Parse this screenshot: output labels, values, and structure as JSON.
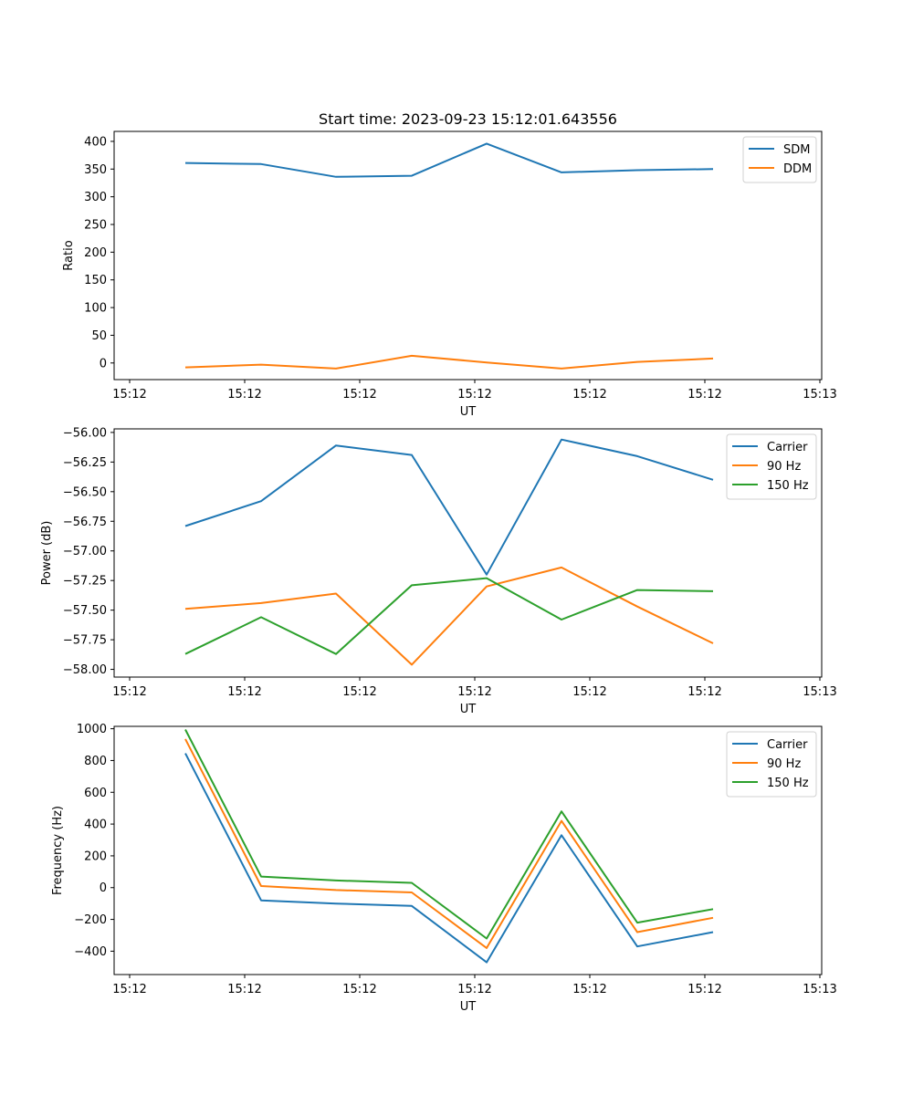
{
  "chart_data": [
    {
      "type": "line",
      "title": "Start time: 2023-09-23 15:12:01.643556",
      "xlabel": "UT",
      "ylabel": "Ratio",
      "x_tick_labels": [
        "15:12",
        "15:12",
        "15:12",
        "15:12",
        "15:12",
        "15:12",
        "15:13"
      ],
      "y_ticks": [
        0,
        50,
        100,
        150,
        200,
        250,
        300,
        350,
        400
      ],
      "ylim": [
        -30,
        418
      ],
      "legend_loc": "upper-right",
      "series": [
        {
          "name": "SDM",
          "color": "#1f77b4",
          "values": [
            361,
            359,
            336,
            338,
            396,
            344,
            348,
            350
          ]
        },
        {
          "name": "DDM",
          "color": "#ff7f0e",
          "values": [
            -8,
            -3,
            -10,
            13,
            1,
            -10,
            2,
            8
          ]
        }
      ]
    },
    {
      "type": "line",
      "title": "",
      "xlabel": "UT",
      "ylabel": "Power (dB)",
      "x_tick_labels": [
        "15:12",
        "15:12",
        "15:12",
        "15:12",
        "15:12",
        "15:12",
        "15:13"
      ],
      "y_ticks": [
        -58.0,
        -57.75,
        -57.5,
        -57.25,
        -57.0,
        -56.75,
        -56.5,
        -56.25,
        -56.0
      ],
      "y_tick_labels": [
        "−58.00",
        "−57.75",
        "−57.50",
        "−57.25",
        "−57.00",
        "−56.75",
        "−56.50",
        "−56.25",
        "−56.00"
      ],
      "ylim": [
        -58.065,
        -55.97
      ],
      "legend_loc": "upper-right",
      "series": [
        {
          "name": "Carrier",
          "color": "#1f77b4",
          "values": [
            -56.79,
            -56.58,
            -56.11,
            -56.19,
            -57.2,
            -56.06,
            -56.2,
            -56.4
          ]
        },
        {
          "name": "90 Hz",
          "color": "#ff7f0e",
          "values": [
            -57.49,
            -57.44,
            -57.36,
            -57.96,
            -57.3,
            -57.14,
            -57.47,
            -57.78
          ]
        },
        {
          "name": "150 Hz",
          "color": "#2ca02c",
          "values": [
            -57.87,
            -57.56,
            -57.87,
            -57.29,
            -57.23,
            -57.58,
            -57.33,
            -57.34
          ]
        }
      ]
    },
    {
      "type": "line",
      "title": "",
      "xlabel": "UT",
      "ylabel": "Frequency (Hz)",
      "x_tick_labels": [
        "15:12",
        "15:12",
        "15:12",
        "15:12",
        "15:12",
        "15:12",
        "15:13"
      ],
      "y_ticks": [
        -400,
        -200,
        0,
        200,
        400,
        600,
        800,
        1000
      ],
      "y_tick_labels": [
        "−400",
        "−200",
        "0",
        "200",
        "400",
        "600",
        "800",
        "1000"
      ],
      "ylim": [
        -547,
        1015
      ],
      "legend_loc": "upper-right",
      "series": [
        {
          "name": "Carrier",
          "color": "#1f77b4",
          "values": [
            845,
            -80,
            -100,
            -115,
            -470,
            330,
            -370,
            -280
          ]
        },
        {
          "name": "90 Hz",
          "color": "#ff7f0e",
          "values": [
            935,
            10,
            -15,
            -30,
            -380,
            420,
            -280,
            -190
          ]
        },
        {
          "name": "150 Hz",
          "color": "#2ca02c",
          "values": [
            995,
            70,
            45,
            30,
            -320,
            480,
            -220,
            -135
          ]
        }
      ]
    }
  ]
}
